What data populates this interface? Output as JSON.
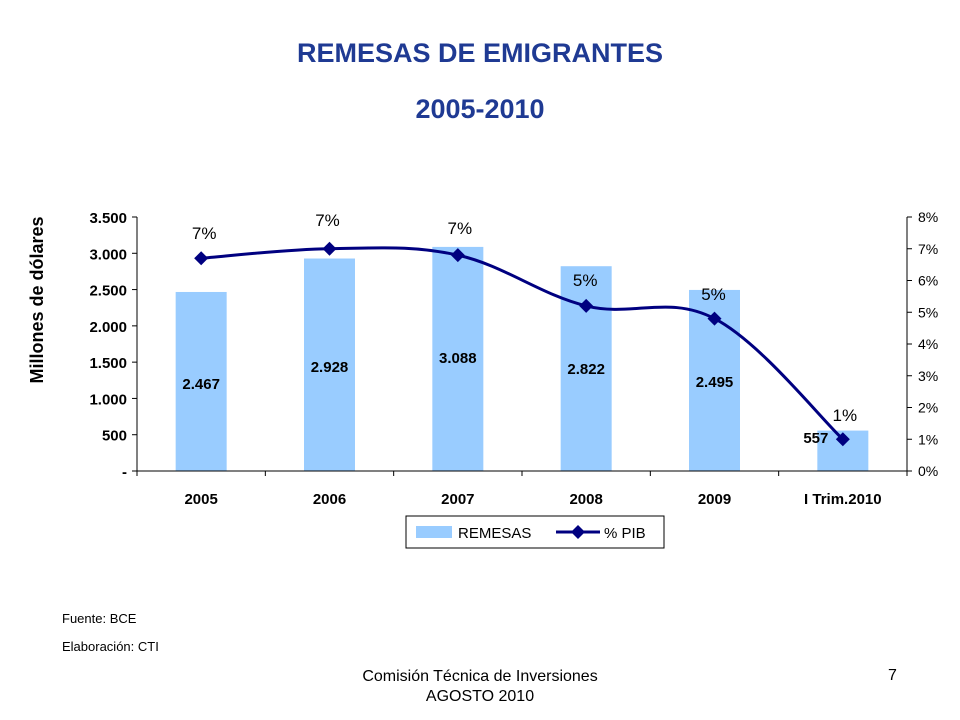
{
  "slide": {
    "title": "REMESAS DE EMIGRANTES",
    "subtitle": "2005-2010",
    "source": "Fuente: BCE",
    "credit": "Elaboración: CTI",
    "footer_line1": "Comisión Técnica de Inversiones",
    "footer_line2": "AGOSTO 2010",
    "page_number": "7"
  },
  "chart_data": {
    "type": "bar",
    "categories": [
      "2005",
      "2006",
      "2007",
      "2008",
      "2009",
      "I Trim.2010"
    ],
    "ylabel": "Millones de dólares",
    "ylim": [
      0,
      3500
    ],
    "y_ticks": [
      0,
      500,
      1000,
      1500,
      2000,
      2500,
      3000,
      3500
    ],
    "y_tick_labels": [
      "-",
      "500",
      "1.000",
      "1.500",
      "2.000",
      "2.500",
      "3.000",
      "3.500"
    ],
    "y2lim": [
      0,
      8
    ],
    "y2_ticks": [
      0,
      1,
      2,
      3,
      4,
      5,
      6,
      7,
      8
    ],
    "y2_tick_labels": [
      "0%",
      "1%",
      "2%",
      "3%",
      "4%",
      "5%",
      "6%",
      "7%",
      "8%"
    ],
    "grid": false,
    "legend_position": "bottom",
    "series": [
      {
        "name": "REMESAS",
        "type": "bar",
        "axis": "left",
        "color": "#99CCFF",
        "values": [
          2467,
          2928,
          3088,
          2822,
          2495,
          557
        ],
        "labels": [
          "2.467",
          "2.928",
          "3.088",
          "2.822",
          "2.495",
          "557"
        ]
      },
      {
        "name": "% PIB",
        "type": "line",
        "axis": "right",
        "color": "#000080",
        "values": [
          6.7,
          7.0,
          6.8,
          5.2,
          4.8,
          1.0
        ],
        "labels": [
          "7%",
          "7%",
          "7%",
          "5%",
          "5%",
          "1%"
        ]
      }
    ]
  }
}
